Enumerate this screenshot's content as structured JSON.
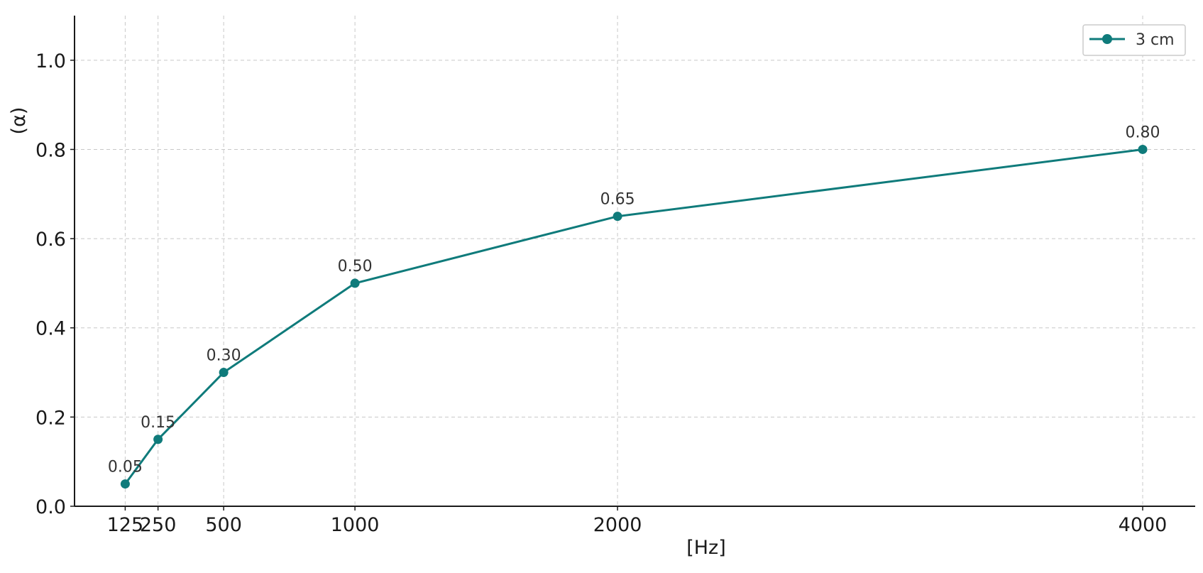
{
  "chart_data": {
    "type": "line",
    "x": [
      125,
      250,
      500,
      1000,
      2000,
      4000
    ],
    "series": [
      {
        "name": "3 cm",
        "values": [
          0.05,
          0.15,
          0.3,
          0.5,
          0.65,
          0.8
        ],
        "labels": [
          "0.05",
          "0.15",
          "0.30",
          "0.50",
          "0.65",
          "0.80"
        ],
        "color": "#0f7b7b",
        "marker": "circle"
      }
    ],
    "x_ticks": [
      125,
      250,
      500,
      1000,
      2000,
      4000
    ],
    "x_tick_labels": [
      "125",
      "250",
      "500",
      "1000",
      "2000",
      "4000"
    ],
    "y_ticks": [
      0.0,
      0.2,
      0.4,
      0.6,
      0.8,
      1.0
    ],
    "y_tick_labels": [
      "0.0",
      "0.2",
      "0.4",
      "0.6",
      "0.8",
      "1.0"
    ],
    "xlabel": "[Hz]",
    "ylabel": "(α)",
    "xlim": [
      -68,
      4200
    ],
    "ylim": [
      0.0,
      1.1
    ],
    "grid": true,
    "legend_position": "top-right"
  }
}
